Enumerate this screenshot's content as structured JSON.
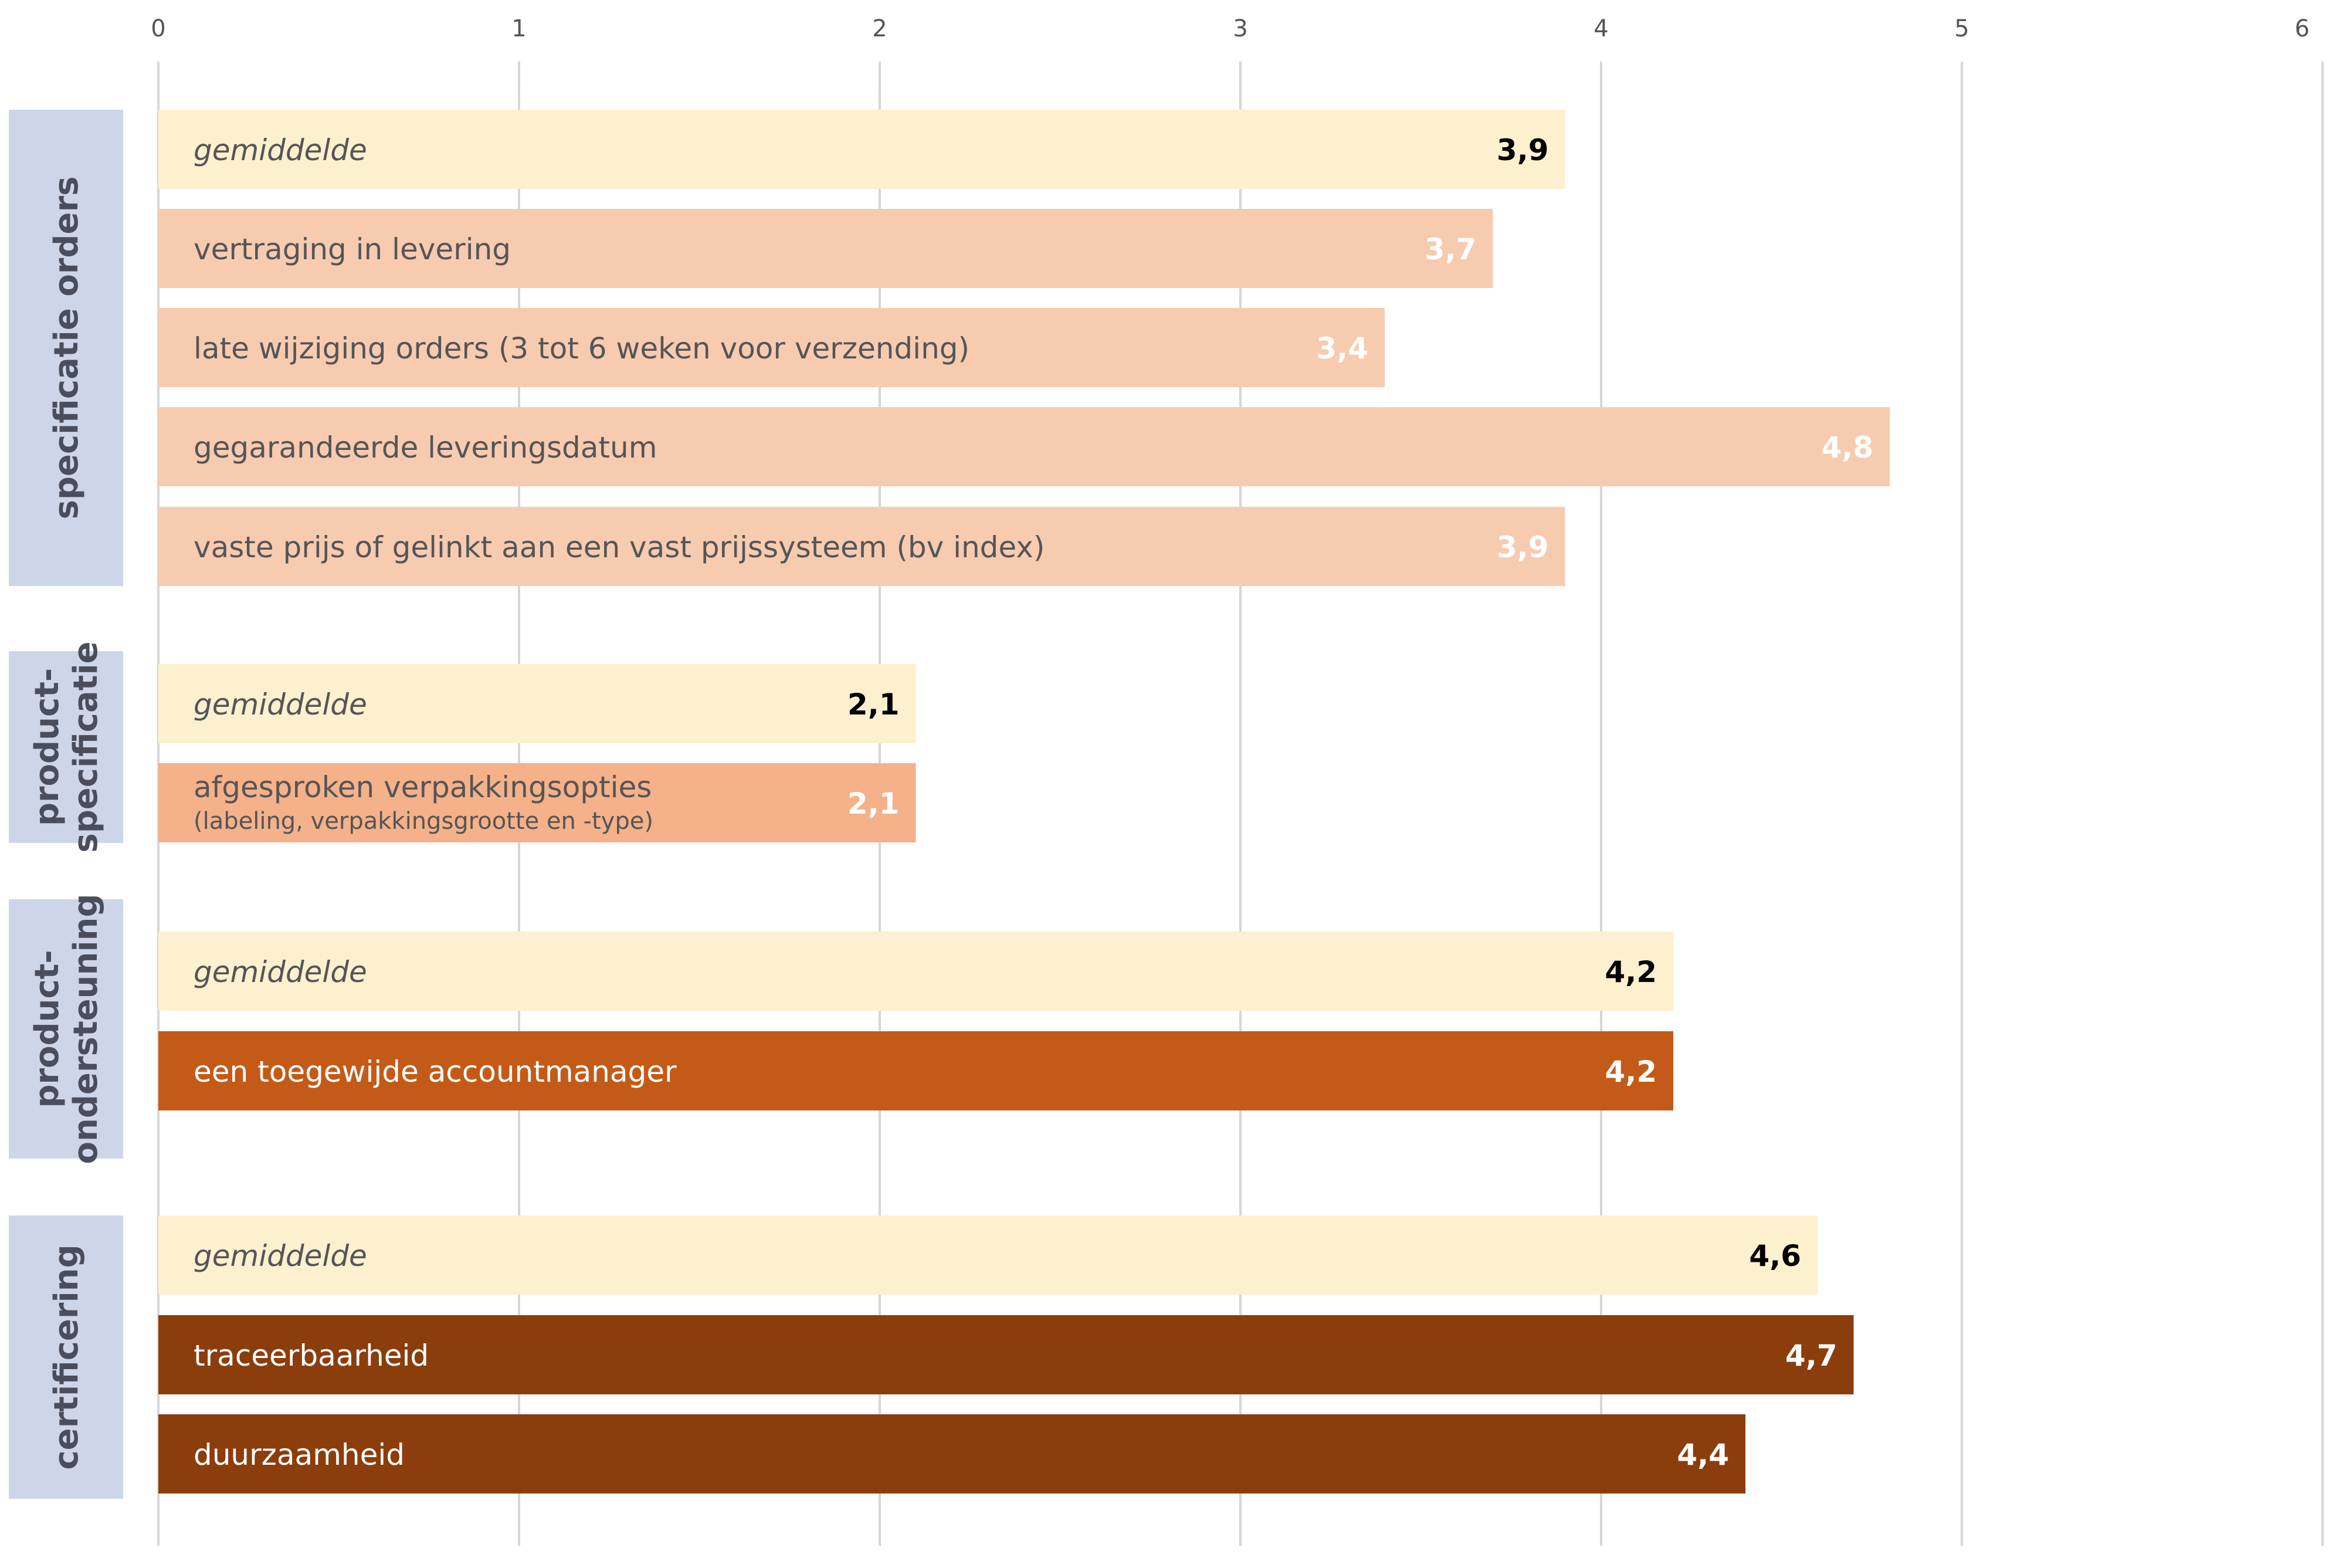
{
  "chart_data": {
    "type": "bar",
    "orientation": "horizontal",
    "xlim": [
      0,
      6
    ],
    "x_ticks": [
      0,
      1,
      2,
      3,
      4,
      5,
      6
    ],
    "grid": true,
    "title": "",
    "xlabel": "",
    "ylabel": "",
    "colors": {
      "average": "#fdf0cf",
      "group1": "#f7cbb0",
      "group2": "#f4b18a",
      "group3": "#c45a17",
      "group4": "#8b3d0c",
      "group_label_bg": "#cdd6e9",
      "grid": "#d6d6d6"
    },
    "groups": [
      {
        "label_lines": [
          "specificatie orders"
        ],
        "bars": [
          {
            "label": "gemiddelde",
            "value": 3.9,
            "value_label": "3,9",
            "kind": "average"
          },
          {
            "label": "vertraging in levering",
            "value": 3.7,
            "value_label": "3,7",
            "kind": "item"
          },
          {
            "label": "late wijziging orders (3 tot 6 weken voor verzending)",
            "value": 3.4,
            "value_label": "3,4",
            "kind": "item"
          },
          {
            "label": "gegarandeerde leveringsdatum",
            "value": 4.8,
            "value_label": "4,8",
            "kind": "item"
          },
          {
            "label": "vaste prijs of gelinkt aan een vast prijssysteem (bv index)",
            "value": 3.9,
            "value_label": "3,9",
            "kind": "item"
          }
        ]
      },
      {
        "label_lines": [
          "product-",
          "specificatie"
        ],
        "bars": [
          {
            "label": "gemiddelde",
            "value": 2.1,
            "value_label": "2,1",
            "kind": "average"
          },
          {
            "label": "afgesproken verpakkingsopties",
            "sublabel": "(labeling, verpakkingsgrootte en -type)",
            "value": 2.1,
            "value_label": "2,1",
            "kind": "item"
          }
        ]
      },
      {
        "label_lines": [
          "product-",
          "ondersteuning"
        ],
        "bars": [
          {
            "label": "gemiddelde",
            "value": 4.2,
            "value_label": "4,2",
            "kind": "average"
          },
          {
            "label": "een toegewijde accountmanager",
            "value": 4.2,
            "value_label": "4,2",
            "kind": "item"
          }
        ]
      },
      {
        "label_lines": [
          "certificering"
        ],
        "bars": [
          {
            "label": "gemiddelde",
            "value": 4.6,
            "value_label": "4,6",
            "kind": "average"
          },
          {
            "label": "traceerbaarheid",
            "value": 4.7,
            "value_label": "4,7",
            "kind": "item"
          },
          {
            "label": "duurzaamheid",
            "value": 4.4,
            "value_label": "4,4",
            "kind": "item"
          }
        ]
      }
    ]
  }
}
